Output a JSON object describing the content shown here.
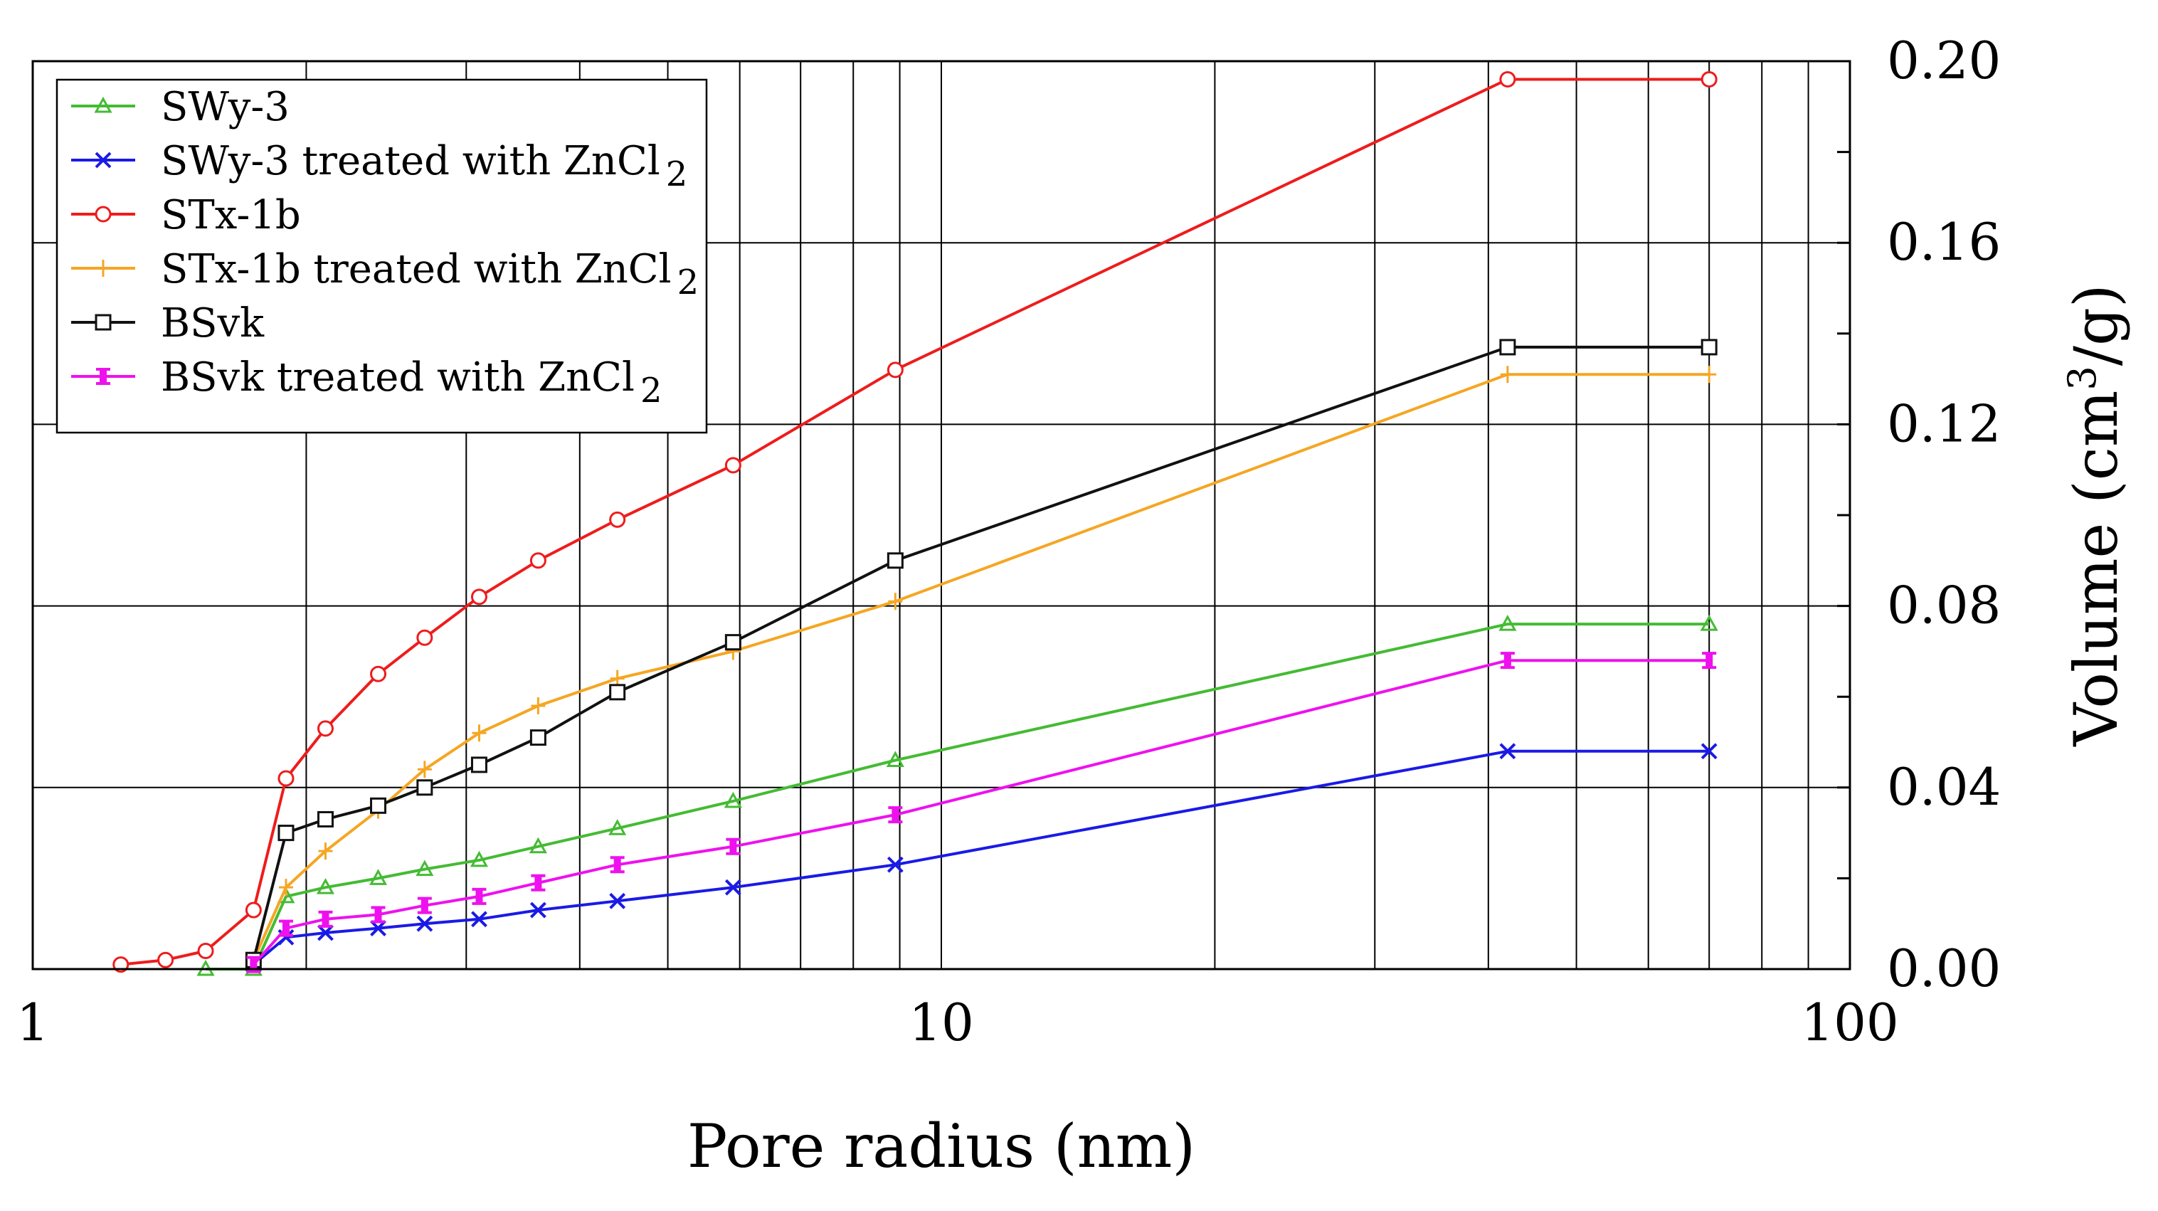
{
  "chart_data": {
    "type": "line",
    "x_scale": "log",
    "xlabel": "Pore radius (nm)",
    "ylabel": {
      "prefix": "Volume (cm",
      "sup": "3",
      "suffix": "/g)"
    },
    "xlim": [
      1,
      100
    ],
    "ylim": [
      0,
      0.2
    ],
    "x_ticks": [
      {
        "value": 1,
        "label": "1"
      },
      {
        "value": 10,
        "label": "10"
      },
      {
        "value": 100,
        "label": "100"
      }
    ],
    "y_ticks": [
      {
        "value": 0.0,
        "label": "0.00"
      },
      {
        "value": 0.04,
        "label": "0.04"
      },
      {
        "value": 0.08,
        "label": "0.08"
      },
      {
        "value": 0.12,
        "label": "0.12"
      },
      {
        "value": 0.16,
        "label": "0.16"
      },
      {
        "value": 0.2,
        "label": "0.20"
      }
    ],
    "grid": true,
    "legend_position": "top-left",
    "series": [
      {
        "name": "SWy-3",
        "base": "SWy-3",
        "sub": "",
        "color": "#44bb33",
        "marker": "triangle",
        "x": [
          1.55,
          1.75,
          1.9,
          2.1,
          2.4,
          2.7,
          3.1,
          3.6,
          4.4,
          5.9,
          8.9,
          42,
          70
        ],
        "y": [
          0.0,
          0.0,
          0.016,
          0.018,
          0.02,
          0.022,
          0.024,
          0.027,
          0.031,
          0.037,
          0.046,
          0.076,
          0.076
        ]
      },
      {
        "name": "SWy-3 treated with ZnCl2",
        "base": "SWy-3 treated with ZnCl",
        "sub": "2",
        "color": "#1a1ae6",
        "marker": "x",
        "x": [
          1.75,
          1.9,
          2.1,
          2.4,
          2.7,
          3.1,
          3.6,
          4.4,
          5.9,
          8.9,
          42,
          70
        ],
        "y": [
          0.001,
          0.007,
          0.008,
          0.009,
          0.01,
          0.011,
          0.013,
          0.015,
          0.018,
          0.023,
          0.048,
          0.048
        ]
      },
      {
        "name": "STx-1b",
        "base": "STx-1b",
        "sub": "",
        "color": "#ee1c1c",
        "marker": "circle",
        "x": [
          1.25,
          1.4,
          1.55,
          1.75,
          1.9,
          2.1,
          2.4,
          2.7,
          3.1,
          3.6,
          4.4,
          5.9,
          8.9,
          42,
          70
        ],
        "y": [
          0.001,
          0.002,
          0.004,
          0.013,
          0.042,
          0.053,
          0.065,
          0.073,
          0.082,
          0.09,
          0.099,
          0.111,
          0.132,
          0.196,
          0.196
        ]
      },
      {
        "name": "STx-1b treated with ZnCl2",
        "base": "STx-1b treated with ZnCl",
        "sub": "2",
        "color": "#f5a623",
        "marker": "plus",
        "x": [
          1.75,
          1.9,
          2.1,
          2.4,
          2.7,
          3.1,
          3.6,
          4.4,
          5.9,
          8.9,
          42,
          70
        ],
        "y": [
          0.002,
          0.018,
          0.026,
          0.035,
          0.044,
          0.052,
          0.058,
          0.064,
          0.07,
          0.081,
          0.131,
          0.131
        ]
      },
      {
        "name": "BSvk",
        "base": "BSvk",
        "sub": "",
        "color": "#111111",
        "marker": "square",
        "x": [
          1.75,
          1.9,
          2.1,
          2.4,
          2.7,
          3.1,
          3.6,
          4.4,
          5.9,
          8.9,
          42,
          70
        ],
        "y": [
          0.002,
          0.03,
          0.033,
          0.036,
          0.04,
          0.045,
          0.051,
          0.061,
          0.072,
          0.09,
          0.137,
          0.137
        ]
      },
      {
        "name": "BSvk treated with ZnCl2",
        "base": "BSvk treated with ZnCl",
        "sub": "2",
        "color": "#ee11ee",
        "marker": "bar",
        "x": [
          1.75,
          1.9,
          2.1,
          2.4,
          2.7,
          3.1,
          3.6,
          4.4,
          5.9,
          8.9,
          42,
          70
        ],
        "y": [
          0.001,
          0.009,
          0.011,
          0.012,
          0.014,
          0.016,
          0.019,
          0.023,
          0.027,
          0.034,
          0.068,
          0.068
        ]
      }
    ]
  }
}
